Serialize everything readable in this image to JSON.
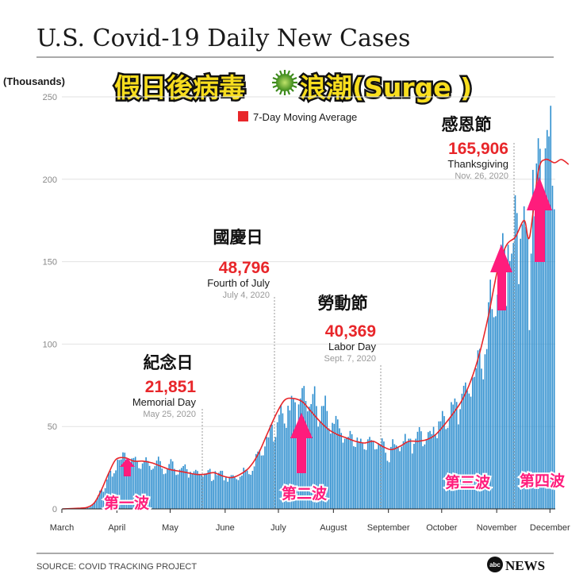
{
  "chart_data": {
    "type": "bar",
    "title": "U.S. Covid-19 Daily New Cases",
    "overlay_title": "假日後病毒",
    "overlay_title_suffix": "浪潮(Surge )",
    "ylabel": "(Thousands)",
    "ylim": [
      0,
      250
    ],
    "yticks": [
      0,
      50,
      100,
      150,
      200,
      250
    ],
    "grid": true,
    "legend": {
      "label": "7-Day Moving Average",
      "color": "#e8262a",
      "position": "top"
    },
    "months": [
      "March",
      "April",
      "May",
      "June",
      "July",
      "August",
      "September",
      "October",
      "November",
      "December"
    ],
    "x_start_date": "Mar 1, 2020",
    "x_end_date": "Dec 15, 2020",
    "moving_average": {
      "name": "7-Day Moving Average",
      "day": [
        0,
        10,
        14,
        18,
        22,
        26,
        30,
        35,
        40,
        45,
        50,
        55,
        60,
        65,
        70,
        75,
        80,
        85,
        90,
        95,
        100,
        105,
        110,
        115,
        120,
        125,
        130,
        135,
        140,
        145,
        150,
        155,
        160,
        165,
        170,
        175,
        180,
        185,
        190,
        195,
        200,
        205,
        210,
        215,
        220,
        225,
        230,
        235,
        240,
        245,
        250,
        255,
        260,
        263,
        268,
        272,
        277,
        281,
        285
      ],
      "values": [
        0,
        0.5,
        1,
        4,
        12,
        22,
        30,
        31,
        29,
        29,
        28,
        26,
        24,
        23,
        22,
        21,
        21,
        22,
        20,
        19,
        21,
        25,
        33,
        45,
        57,
        66,
        67,
        65,
        59,
        53,
        48,
        45,
        43,
        41,
        40,
        41,
        38,
        36,
        38,
        41,
        41,
        42,
        45,
        51,
        58,
        66,
        78,
        95,
        118,
        145,
        160,
        165,
        175,
        165,
        205,
        212,
        210,
        212,
        209
      ]
    },
    "bars": {
      "name": "Daily New Cases",
      "first_day": 0,
      "values": [
        0,
        0,
        0,
        0,
        0,
        0,
        0,
        0.1,
        0.1,
        0.1,
        0.2,
        0.3,
        0.4,
        0.6,
        0.7,
        0.9,
        1.6,
        2.6,
        3.8,
        5.7,
        8.2,
        11.1,
        11.8,
        10.4,
        12.6,
        17.8,
        21.8,
        23.1,
        19.6,
        21.6,
        23.4,
        29.9,
        29.7,
        30.0,
        34.3,
        34.1,
        27.6,
        22.5,
        27.2,
        30.6,
        30.9,
        31.6,
        28.6,
        24.7,
        24.3,
        27.6,
        28.8,
        31.3,
        29.1,
        26.1,
        23.7,
        24.4,
        25.9,
        29.3,
        31.7,
        29.0,
        24.5,
        21.1,
        21.5,
        24.5,
        27.2,
        30.2,
        28.8,
        24.3,
        20.6,
        20.9,
        23.9,
        24.9,
        26.0,
        27.0,
        24.1,
        19.0,
        22.5,
        21.6,
        22.8,
        23.7,
        23.0,
        20.5,
        20.5,
        19.6,
        21.5,
        21.6,
        23.5,
        24.3,
        16.9,
        17.6,
        22.9,
        20.5,
        21.9,
        23.1,
        23.1,
        17.3,
        19.2,
        16.5,
        19.5,
        20.5,
        20.5,
        19.1,
        18.1,
        17.5,
        19.5,
        20.2,
        25.0,
        23.7,
        23.3,
        21.1,
        20.7,
        23.1,
        25.8,
        33.3,
        34.8,
        35.9,
        32.4,
        32.5,
        37.9,
        43.7,
        43.4,
        50.8,
        51.1,
        40.8,
        43.6,
        52.6,
        57.1,
        63.1,
        58.0,
        51.8,
        49.2,
        62.6,
        59.8,
        68.6,
        67.1,
        64.7,
        49.0,
        63.4,
        67.0,
        73.3,
        74.6,
        65.5,
        59.2,
        62.0,
        63.6,
        69.7,
        74.4,
        62.4,
        49.9,
        53.0,
        62.4,
        62.5,
        68.7,
        59.4,
        48.9,
        45.7,
        52.2,
        51.6,
        56.4,
        54.3,
        48.9,
        46.1,
        40.2,
        42.6,
        43.3,
        43.7,
        47.3,
        45.3,
        38.0,
        37.6,
        43.3,
        40.9,
        42.6,
        40.1,
        36.2,
        35.8,
        42.2,
        43.7,
        41.8,
        41.4,
        36.1,
        36.3,
        39.9,
        39.4,
        42.8,
        40.9,
        34.1,
        29.2,
        28.3,
        37.6,
        42.3,
        39.3,
        38.5,
        37.7,
        35.0,
        37.8,
        41.1,
        45.5,
        40.6,
        42.6,
        42.6,
        33.6,
        39.5,
        42.6,
        46.8,
        49.6,
        47.1,
        38.0,
        39.1,
        42.3,
        46.6,
        47.3,
        45.4,
        49.8,
        45.3,
        42.9,
        53.1,
        53.2,
        59.4,
        56.3,
        48.4,
        49.2,
        55.4,
        64.8,
        63.3,
        67.0,
        64.9,
        51.3,
        60.5,
        69.9,
        74.7,
        76.7,
        71.9,
        70.0,
        68.1,
        79.7,
        80.1,
        85.3,
        96.2,
        97.1,
        85.1,
        78.6,
        93.8,
        97.0,
        125.4,
        139.1,
        121.2,
        116.3,
        116.9,
        130.0,
        145.1,
        160.3,
        167.3,
        157.6,
        123.1,
        160.3,
        150.4,
        154.9,
        161.3,
        190.3,
        179.5,
        136.4,
        163.9,
        172.7,
        183.6,
        171.1,
        165.9,
        108.5,
        154.9,
        205.7,
        177.5,
        209.6,
        224.9,
        218.5,
        172.5,
        189.6,
        218.8,
        229.9,
        226.0,
        244.6,
        196.1,
        181.8
      ],
      "color": "#2f8fcf"
    },
    "annotations": [
      {
        "zh": "紀念日",
        "value": "21,851",
        "en": "Memorial Day",
        "date": "May 25, 2020"
      },
      {
        "zh": "國慶日",
        "value": "48,796",
        "en": "Fourth of July",
        "date": "July 4, 2020"
      },
      {
        "zh": "勞動節",
        "value": "40,369",
        "en": "Labor Day",
        "date": "Sept. 7, 2020"
      },
      {
        "zh": "感恩節",
        "value": "165,906",
        "en": "Thanksgiving",
        "date": "Nov. 26, 2020"
      }
    ],
    "wave_labels": [
      "第一波",
      "第二波",
      "第三波",
      "第四波"
    ],
    "source": "SOURCE: COVID TRACKING PROJECT",
    "brand": "NEWS",
    "brand_logo_text": "abc",
    "colors": {
      "accent_red": "#e8262a",
      "wave_pink": "#ff1c7c",
      "title_yellow": "#f7dd1e"
    }
  }
}
